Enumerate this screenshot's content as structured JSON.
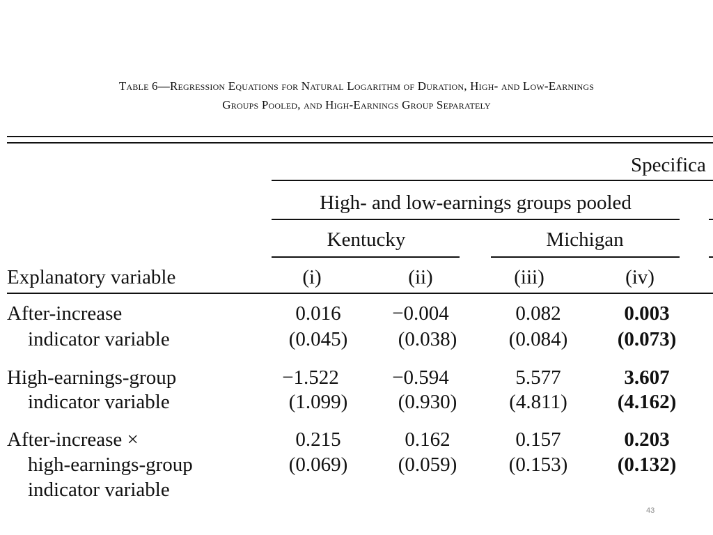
{
  "caption": {
    "line1": "Table 6—Regression Equations for Natural Logarithm of Duration, High- and Low-Earnings",
    "line2": "Groups Pooled, and High-Earnings Group Separately"
  },
  "header": {
    "specification": "Specifica",
    "group_pooled": "High- and low-earnings groups pooled",
    "kentucky": "Kentucky",
    "michigan": "Michigan",
    "explanatory_variable": "Explanatory variable",
    "columns": [
      "(i)",
      "(ii)",
      "(iii)",
      "(iv)"
    ]
  },
  "rows": [
    {
      "label_lines": [
        "After-increase",
        "indicator variable"
      ],
      "coefficients": [
        "0.016",
        "−0.004",
        "0.082",
        "0.003"
      ],
      "std_errors": [
        "(0.045)",
        "(0.038)",
        "(0.084)",
        "(0.073)"
      ]
    },
    {
      "label_lines": [
        "High-earnings-group",
        "indicator variable"
      ],
      "coefficients": [
        "−1.522",
        "−0.594",
        "5.577",
        "3.607"
      ],
      "std_errors": [
        "(1.099)",
        "(0.930)",
        "(4.811)",
        "(4.162)"
      ]
    },
    {
      "label_lines": [
        "After-increase ×",
        "high-earnings-group",
        "indicator variable"
      ],
      "coefficients": [
        "0.215",
        "0.162",
        "0.157",
        "0.203"
      ],
      "std_errors": [
        "(0.069)",
        "(0.059)",
        "(0.153)",
        "(0.132)"
      ]
    }
  ],
  "page_number": "43"
}
